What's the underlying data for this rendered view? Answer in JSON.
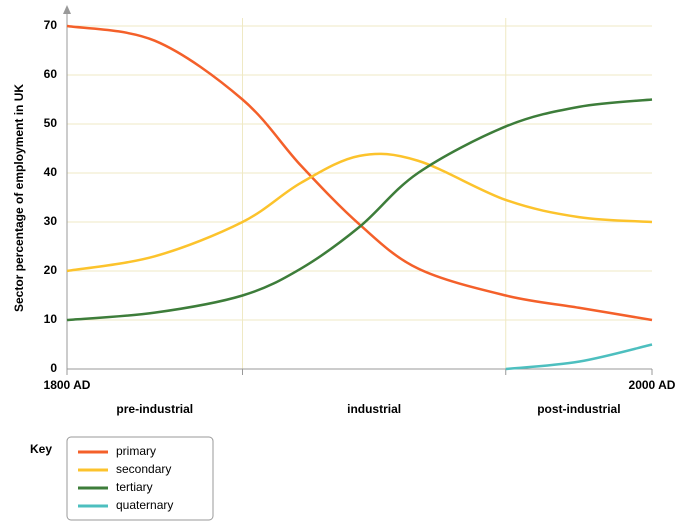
{
  "chart_data": {
    "type": "line",
    "ylabel": "Sector percentage of employment in UK",
    "x": [
      1800,
      1830,
      1860,
      1880,
      1900,
      1920,
      1950,
      1975,
      2000
    ],
    "xlim": [
      1800,
      2000
    ],
    "xticks": [
      {
        "value": 1800,
        "label": "1800 AD"
      },
      {
        "value": 2000,
        "label": "2000 AD"
      }
    ],
    "phase_boundaries": [
      1860,
      1950
    ],
    "phases": [
      "pre-industrial",
      "industrial",
      "post-industrial"
    ],
    "ylim": [
      0,
      70
    ],
    "yticks": [
      0,
      10,
      20,
      30,
      40,
      50,
      60,
      70
    ],
    "grid": true,
    "legend_title": "Key",
    "series": [
      {
        "name": "primary",
        "color": "#f4602a",
        "values": [
          70,
          67,
          55,
          41.5,
          29.5,
          20.5,
          15,
          12.5,
          10
        ]
      },
      {
        "name": "secondary",
        "color": "#fcc32c",
        "values": [
          20,
          23,
          30,
          38,
          43.5,
          42.5,
          34.5,
          31,
          30
        ]
      },
      {
        "name": "tertiary",
        "color": "#3d7d3a",
        "values": [
          10,
          11.5,
          15,
          20.5,
          29,
          40,
          49.5,
          53.5,
          55
        ]
      },
      {
        "name": "quaternary",
        "color": "#4dbfbf",
        "values": [
          null,
          null,
          null,
          null,
          null,
          null,
          0,
          1.5,
          5
        ]
      }
    ]
  }
}
